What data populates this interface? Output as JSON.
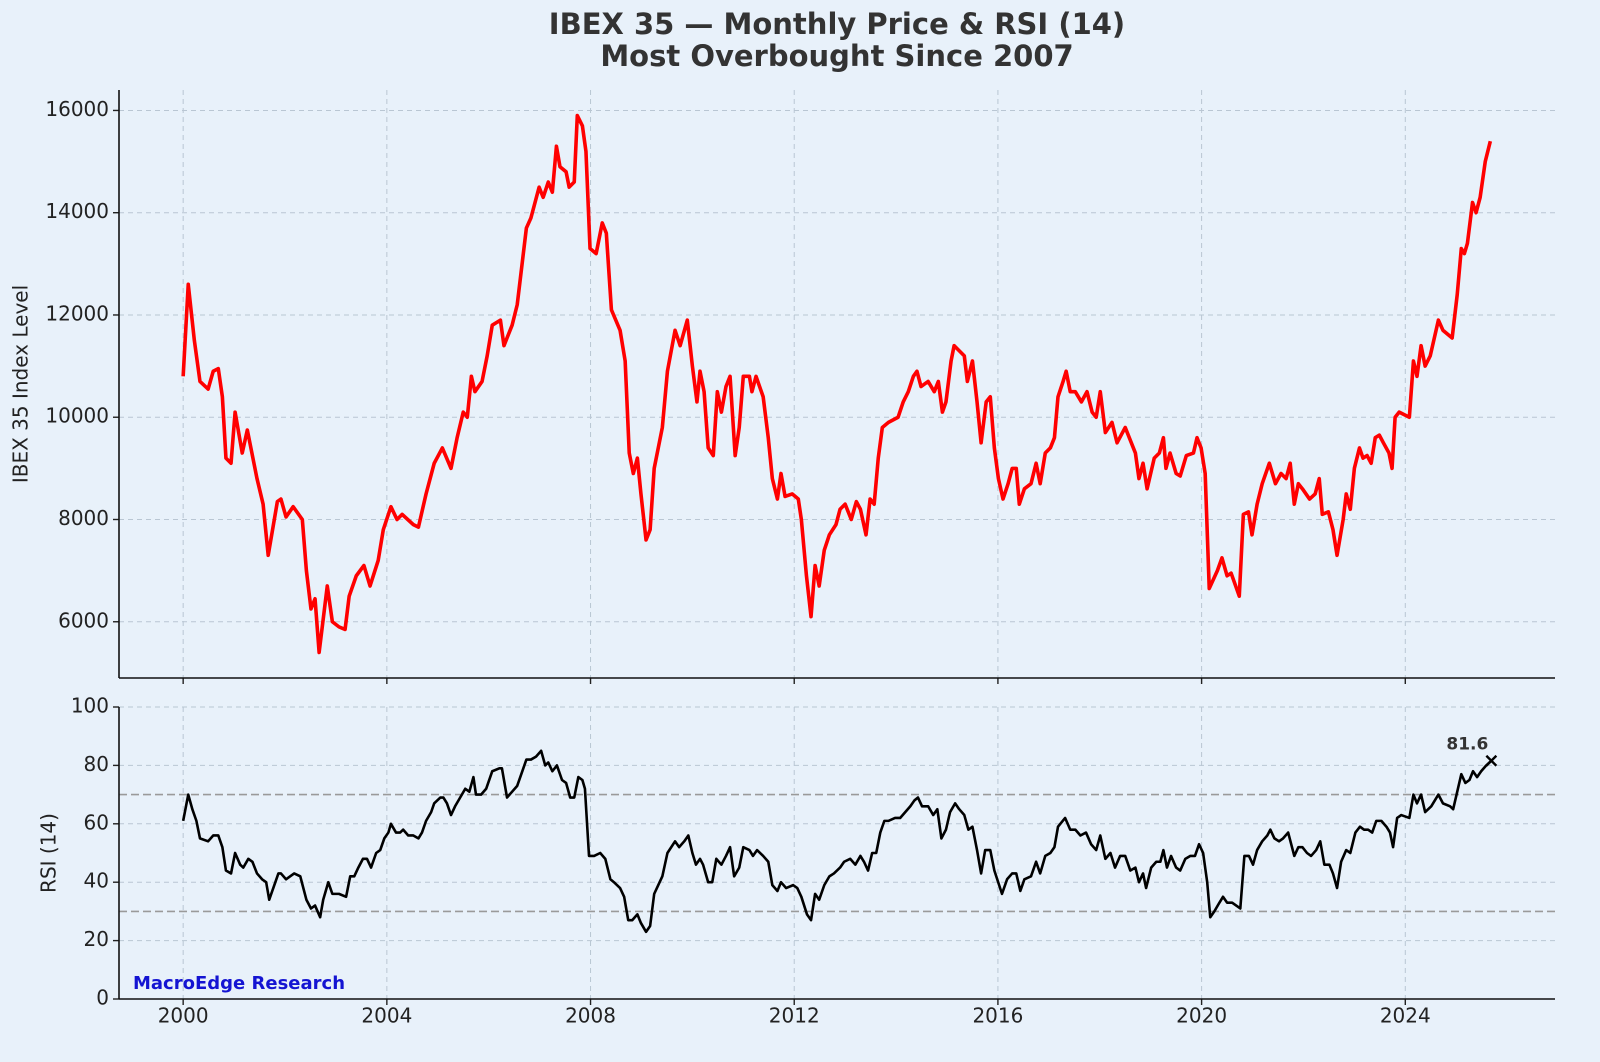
{
  "chart_data": [
    {
      "type": "line",
      "title": "IBEX 35 — Monthly Price & RSI (14)",
      "subtitle": "Most Overbought Since 2007",
      "ylabel": "IBEX 35 Index Level",
      "color": "#ff0000",
      "xlim": [
        1998.74,
        2026.94
      ],
      "xticks": [
        2000,
        2004,
        2008,
        2012,
        2016,
        2020,
        2024
      ],
      "ylim": [
        4900,
        16400
      ],
      "yticks": [
        6000,
        8000,
        10000,
        12000,
        14000,
        16000
      ],
      "grid": true,
      "x": [
        2000.0,
        2000.1,
        2000.22,
        2000.33,
        2000.49,
        2000.59,
        2000.69,
        2000.77,
        2000.84,
        2000.94,
        2001.02,
        2001.16,
        2001.26,
        2001.45,
        2001.57,
        2001.67,
        2001.85,
        2001.92,
        2002.02,
        2002.16,
        2002.34,
        2002.42,
        2002.51,
        2002.59,
        2002.67,
        2002.83,
        2002.93,
        2003.06,
        2003.18,
        2003.26,
        2003.4,
        2003.55,
        2003.67,
        2003.83,
        2003.93,
        2004.08,
        2004.2,
        2004.3,
        2004.52,
        2004.62,
        2004.77,
        2004.93,
        2005.09,
        2005.26,
        2005.38,
        2005.5,
        2005.58,
        2005.66,
        2005.73,
        2005.87,
        2005.97,
        2006.07,
        2006.23,
        2006.3,
        2006.46,
        2006.56,
        2006.74,
        2006.83,
        2006.99,
        2007.07,
        2007.17,
        2007.25,
        2007.33,
        2007.4,
        2007.52,
        2007.58,
        2007.68,
        2007.74,
        2007.84,
        2007.91,
        2007.99,
        2008.11,
        2008.23,
        2008.31,
        2008.41,
        2008.58,
        2008.68,
        2008.76,
        2008.84,
        2008.92,
        2008.99,
        2009.09,
        2009.17,
        2009.25,
        2009.41,
        2009.51,
        2009.66,
        2009.76,
        2009.9,
        2010.0,
        2010.09,
        2010.15,
        2010.23,
        2010.31,
        2010.41,
        2010.49,
        2010.57,
        2010.66,
        2010.74,
        2010.84,
        2010.92,
        2011.0,
        2011.12,
        2011.17,
        2011.25,
        2011.39,
        2011.49,
        2011.57,
        2011.67,
        2011.74,
        2011.82,
        2011.96,
        2012.08,
        2012.14,
        2012.24,
        2012.33,
        2012.41,
        2012.49,
        2012.59,
        2012.69,
        2012.82,
        2012.9,
        2013.0,
        2013.12,
        2013.22,
        2013.3,
        2013.41,
        2013.49,
        2013.57,
        2013.65,
        2013.73,
        2013.85,
        2014.04,
        2014.14,
        2014.24,
        2014.34,
        2014.41,
        2014.49,
        2014.63,
        2014.75,
        2014.83,
        2014.91,
        2014.98,
        2015.08,
        2015.14,
        2015.34,
        2015.4,
        2015.5,
        2015.59,
        2015.67,
        2015.77,
        2015.85,
        2015.93,
        2016.01,
        2016.1,
        2016.2,
        2016.28,
        2016.36,
        2016.42,
        2016.52,
        2016.65,
        2016.75,
        2016.83,
        2016.93,
        2017.03,
        2017.11,
        2017.18,
        2017.28,
        2017.34,
        2017.42,
        2017.52,
        2017.64,
        2017.75,
        2017.85,
        2017.93,
        2018.01,
        2018.11,
        2018.24,
        2018.34,
        2018.5,
        2018.62,
        2018.7,
        2018.77,
        2018.85,
        2018.93,
        2019.07,
        2019.17,
        2019.25,
        2019.3,
        2019.38,
        2019.5,
        2019.58,
        2019.7,
        2019.84,
        2019.91,
        2019.99,
        2020.07,
        2020.15,
        2020.31,
        2020.4,
        2020.5,
        2020.58,
        2020.74,
        2020.82,
        2020.92,
        2020.99,
        2021.09,
        2021.19,
        2021.33,
        2021.45,
        2021.56,
        2021.66,
        2021.74,
        2021.82,
        2021.9,
        2021.98,
        2022.12,
        2022.23,
        2022.31,
        2022.37,
        2022.49,
        2022.58,
        2022.66,
        2022.78,
        2022.84,
        2022.92,
        2023.0,
        2023.1,
        2023.17,
        2023.25,
        2023.33,
        2023.41,
        2023.49,
        2023.57,
        2023.68,
        2023.74,
        2023.8,
        2023.88,
        2024.08,
        2024.16,
        2024.23,
        2024.31,
        2024.39,
        2024.49,
        2024.65,
        2024.74,
        2024.92,
        2025.02,
        2025.1,
        2025.16,
        2025.22,
        2025.32,
        2025.39,
        2025.47,
        2025.57,
        2025.67
      ],
      "values": [
        10800,
        12600,
        11500,
        10700,
        10550,
        10900,
        10950,
        10400,
        9200,
        9100,
        10100,
        9300,
        9750,
        8800,
        8300,
        7300,
        8350,
        8400,
        8050,
        8250,
        8000,
        7000,
        6250,
        6450,
        5400,
        6700,
        6000,
        5900,
        5850,
        6500,
        6900,
        7100,
        6700,
        7200,
        7800,
        8250,
        8000,
        8100,
        7900,
        7850,
        8500,
        9100,
        9400,
        9000,
        9600,
        10100,
        10000,
        10800,
        10500,
        10700,
        11200,
        11800,
        11900,
        11400,
        11800,
        12200,
        13700,
        13900,
        14500,
        14300,
        14600,
        14400,
        15300,
        14900,
        14800,
        14500,
        14600,
        15900,
        15700,
        15200,
        13300,
        13200,
        13800,
        13600,
        12100,
        11700,
        11100,
        9300,
        8900,
        9200,
        8500,
        7600,
        7800,
        9000,
        9800,
        10900,
        11700,
        11400,
        11900,
        11000,
        10300,
        10900,
        10500,
        9400,
        9250,
        10500,
        10100,
        10600,
        10800,
        9250,
        9800,
        10800,
        10800,
        10500,
        10800,
        10400,
        9600,
        8800,
        8400,
        8900,
        8450,
        8500,
        8400,
        8000,
        6900,
        6100,
        7100,
        6700,
        7400,
        7700,
        7900,
        8200,
        8300,
        8000,
        8350,
        8200,
        7700,
        8400,
        8300,
        9200,
        9800,
        9900,
        10000,
        10300,
        10500,
        10800,
        10900,
        10600,
        10700,
        10500,
        10700,
        10100,
        10300,
        11100,
        11400,
        11200,
        10700,
        11100,
        10300,
        9500,
        10300,
        10400,
        9400,
        8800,
        8400,
        8700,
        9000,
        9000,
        8300,
        8600,
        8700,
        9100,
        8700,
        9300,
        9400,
        9600,
        10400,
        10700,
        10900,
        10500,
        10500,
        10300,
        10500,
        10100,
        10000,
        10500,
        9700,
        9900,
        9500,
        9800,
        9500,
        9300,
        8800,
        9100,
        8600,
        9200,
        9300,
        9600,
        9000,
        9300,
        8900,
        8850,
        9250,
        9300,
        9600,
        9400,
        8900,
        6650,
        7000,
        7250,
        6900,
        6950,
        6500,
        8100,
        8150,
        7700,
        8300,
        8700,
        9100,
        8700,
        8900,
        8800,
        9100,
        8300,
        8700,
        8600,
        8400,
        8500,
        8800,
        8100,
        8150,
        7800,
        7300,
        8000,
        8500,
        8200,
        9000,
        9400,
        9200,
        9250,
        9100,
        9600,
        9650,
        9500,
        9300,
        9000,
        10000,
        10100,
        10000,
        11100,
        10800,
        11400,
        11000,
        11200,
        11900,
        11700,
        11550,
        12400,
        13300,
        13200,
        13400,
        14200,
        14000,
        14300,
        15000,
        15400
      ]
    },
    {
      "type": "line",
      "ylabel": "RSI (14)",
      "color": "#000000",
      "watermark": "MacroEdge Research",
      "xlim": [
        1998.74,
        2026.94
      ],
      "xticks": [
        2000,
        2004,
        2008,
        2012,
        2016,
        2020,
        2024
      ],
      "ylim": [
        0,
        100
      ],
      "yticks": [
        0,
        20,
        40,
        60,
        80,
        100
      ],
      "grid": true,
      "reference_lines": [
        70,
        30
      ],
      "x": [
        2000.0,
        2000.1,
        2000.18,
        2000.26,
        2000.33,
        2000.49,
        2000.59,
        2000.69,
        2000.77,
        2000.84,
        2000.94,
        2001.02,
        2001.12,
        2001.18,
        2001.28,
        2001.36,
        2001.45,
        2001.55,
        2001.63,
        2001.69,
        2001.77,
        2001.87,
        2001.92,
        2002.02,
        2002.18,
        2002.3,
        2002.42,
        2002.51,
        2002.59,
        2002.69,
        2002.75,
        2002.85,
        2002.93,
        2003.06,
        2003.2,
        2003.28,
        2003.36,
        2003.44,
        2003.53,
        2003.61,
        2003.69,
        2003.79,
        2003.87,
        2003.95,
        2004.03,
        2004.08,
        2004.18,
        2004.26,
        2004.32,
        2004.42,
        2004.52,
        2004.62,
        2004.69,
        2004.77,
        2004.87,
        2004.93,
        2005.05,
        2005.11,
        2005.18,
        2005.26,
        2005.34,
        2005.44,
        2005.54,
        2005.62,
        2005.7,
        2005.75,
        2005.85,
        2005.95,
        2006.07,
        2006.21,
        2006.26,
        2006.36,
        2006.46,
        2006.56,
        2006.64,
        2006.74,
        2006.83,
        2006.93,
        2007.03,
        2007.11,
        2007.17,
        2007.25,
        2007.34,
        2007.44,
        2007.52,
        2007.6,
        2007.68,
        2007.76,
        2007.84,
        2007.89,
        2007.97,
        2008.07,
        2008.19,
        2008.29,
        2008.39,
        2008.46,
        2008.58,
        2008.66,
        2008.74,
        2008.82,
        2008.92,
        2008.99,
        2009.09,
        2009.17,
        2009.25,
        2009.41,
        2009.51,
        2009.66,
        2009.74,
        2009.84,
        2009.92,
        2010.0,
        2010.07,
        2010.15,
        2010.21,
        2010.31,
        2010.39,
        2010.47,
        2010.57,
        2010.66,
        2010.74,
        2010.82,
        2010.92,
        2011.0,
        2011.12,
        2011.19,
        2011.27,
        2011.39,
        2011.49,
        2011.57,
        2011.67,
        2011.74,
        2011.84,
        2011.98,
        2012.06,
        2012.14,
        2012.25,
        2012.33,
        2012.41,
        2012.49,
        2012.59,
        2012.69,
        2012.78,
        2012.9,
        2012.98,
        2013.1,
        2013.2,
        2013.3,
        2013.37,
        2013.45,
        2013.53,
        2013.61,
        2013.69,
        2013.77,
        2013.85,
        2013.98,
        2014.08,
        2014.18,
        2014.28,
        2014.36,
        2014.43,
        2014.51,
        2014.63,
        2014.73,
        2014.81,
        2014.89,
        2014.98,
        2015.06,
        2015.16,
        2015.24,
        2015.34,
        2015.42,
        2015.5,
        2015.59,
        2015.67,
        2015.75,
        2015.85,
        2015.93,
        2016.08,
        2016.18,
        2016.28,
        2016.36,
        2016.44,
        2016.52,
        2016.65,
        2016.75,
        2016.83,
        2016.93,
        2017.03,
        2017.11,
        2017.18,
        2017.32,
        2017.42,
        2017.52,
        2017.62,
        2017.73,
        2017.83,
        2017.93,
        2018.01,
        2018.11,
        2018.21,
        2018.3,
        2018.4,
        2018.5,
        2018.6,
        2018.7,
        2018.77,
        2018.85,
        2018.91,
        2019.01,
        2019.11,
        2019.19,
        2019.25,
        2019.32,
        2019.4,
        2019.5,
        2019.58,
        2019.68,
        2019.78,
        2019.87,
        2019.95,
        2020.03,
        2020.11,
        2020.17,
        2020.25,
        2020.35,
        2020.42,
        2020.5,
        2020.6,
        2020.68,
        2020.76,
        2020.84,
        2020.93,
        2021.01,
        2021.09,
        2021.19,
        2021.29,
        2021.35,
        2021.43,
        2021.52,
        2021.6,
        2021.7,
        2021.82,
        2021.9,
        2021.98,
        2022.07,
        2022.15,
        2022.25,
        2022.33,
        2022.41,
        2022.51,
        2022.58,
        2022.66,
        2022.74,
        2022.84,
        2022.92,
        2023.02,
        2023.11,
        2023.19,
        2023.27,
        2023.35,
        2023.43,
        2023.53,
        2023.63,
        2023.7,
        2023.76,
        2023.84,
        2023.92,
        2024.08,
        2024.16,
        2024.23,
        2024.31,
        2024.39,
        2024.51,
        2024.65,
        2024.74,
        2024.88,
        2024.94,
        2025.02,
        2025.1,
        2025.18,
        2025.26,
        2025.33,
        2025.41,
        2025.49,
        2025.59,
        2025.69
      ],
      "values": [
        61,
        70,
        65,
        61,
        55,
        54,
        56,
        56,
        52,
        44,
        43,
        50,
        46,
        45,
        48,
        47,
        43,
        41,
        40,
        34,
        38,
        43,
        43,
        41,
        43,
        42,
        34,
        31,
        32,
        28,
        34,
        40,
        36,
        36,
        35,
        42,
        42,
        45,
        48,
        48,
        45,
        50,
        51,
        55,
        57,
        60,
        57,
        57,
        58,
        56,
        56,
        55,
        57,
        61,
        64,
        67,
        69,
        69,
        67,
        63,
        66,
        69,
        72,
        71,
        76,
        70,
        70,
        72,
        78,
        79,
        79,
        69,
        71,
        73,
        77,
        82,
        82,
        83,
        85,
        80,
        81,
        78,
        80,
        75,
        74,
        69,
        69,
        76,
        75,
        72,
        49,
        49,
        50,
        48,
        41,
        40,
        38,
        35,
        27,
        27,
        29,
        26,
        23,
        25,
        36,
        42,
        50,
        54,
        52,
        54,
        56,
        50,
        46,
        48,
        46,
        40,
        40,
        48,
        46,
        49,
        52,
        42,
        45,
        52,
        51,
        49,
        51,
        49,
        47,
        39,
        37,
        40,
        38,
        39,
        38,
        35,
        29,
        27,
        36,
        34,
        39,
        42,
        43,
        45,
        47,
        48,
        46,
        49,
        47,
        44,
        50,
        50,
        57,
        61,
        61,
        62,
        62,
        64,
        66,
        68,
        69,
        66,
        66,
        63,
        65,
        55,
        58,
        64,
        67,
        65,
        63,
        58,
        59,
        51,
        43,
        51,
        51,
        44,
        36,
        41,
        43,
        43,
        37,
        41,
        42,
        47,
        43,
        49,
        50,
        52,
        59,
        62,
        58,
        58,
        56,
        57,
        53,
        51,
        56,
        48,
        50,
        45,
        49,
        49,
        44,
        45,
        40,
        43,
        38,
        45,
        47,
        47,
        51,
        45,
        49,
        45,
        44,
        48,
        49,
        49,
        53,
        50,
        40,
        28,
        30,
        33,
        35,
        33,
        33,
        32,
        31,
        49,
        49,
        46,
        51,
        54,
        56,
        58,
        55,
        54,
        55,
        57,
        49,
        52,
        52,
        50,
        49,
        51,
        54,
        46,
        46,
        43,
        38,
        47,
        51,
        50,
        57,
        59,
        58,
        58,
        57,
        61,
        61,
        59,
        57,
        52,
        62,
        63,
        62,
        70,
        67,
        70,
        64,
        66,
        70,
        67,
        66,
        65,
        71,
        77,
        74,
        75,
        78,
        76,
        78,
        80,
        81.6
      ]
    }
  ]
}
